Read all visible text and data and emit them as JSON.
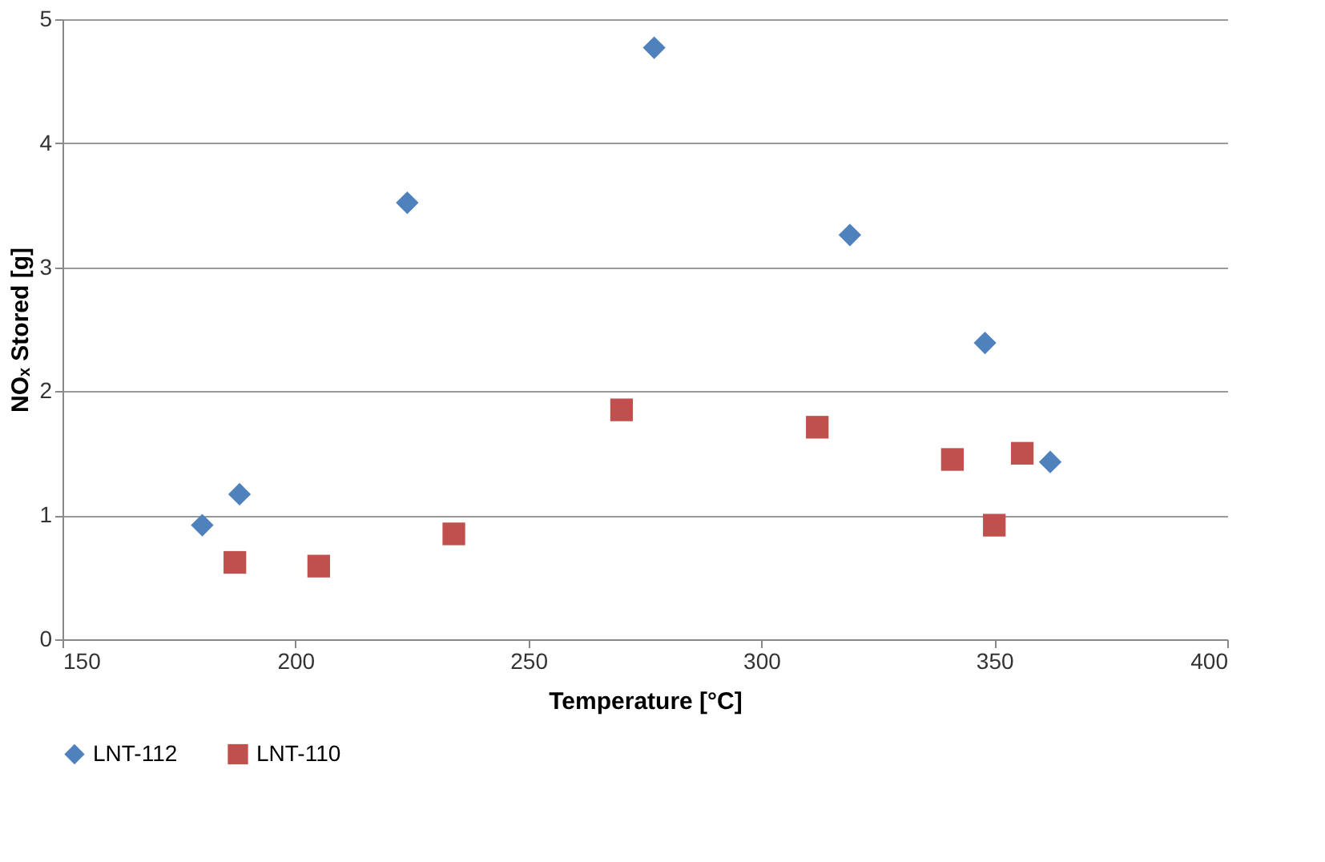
{
  "chart_data": {
    "type": "scatter",
    "xlabel": "Temperature [°C]",
    "ylabel": "NOₓ Stored [g]",
    "xlim": [
      150,
      400
    ],
    "xticks": [
      150,
      200,
      250,
      300,
      350,
      400
    ],
    "ylim": [
      0,
      5
    ],
    "yticks": [
      0,
      1,
      2,
      3,
      4,
      5
    ],
    "grid": "y",
    "legend": "bottom",
    "series": [
      {
        "name": "LNT-112",
        "color": "#4f81bd",
        "marker": "diamond",
        "x": [
          180,
          188,
          224,
          277,
          319,
          348,
          362
        ],
        "values": [
          0.92,
          1.17,
          3.52,
          4.77,
          3.26,
          2.39,
          1.43
        ]
      },
      {
        "name": "LNT-110",
        "color": "#c0504d",
        "marker": "square",
        "x": [
          187,
          205,
          234,
          270,
          312,
          341,
          350,
          356
        ],
        "values": [
          0.62,
          0.59,
          0.85,
          1.85,
          1.71,
          1.45,
          0.92,
          1.5
        ]
      }
    ]
  }
}
